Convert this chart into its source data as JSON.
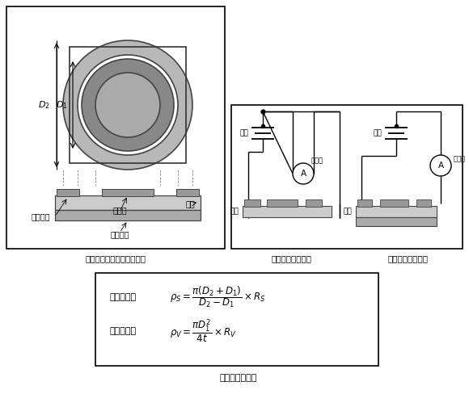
{
  "bg_color": "#ffffff",
  "title_electrode": "抗抗率測定試料の電極形状",
  "title_surface": "表面抗抗測定回路",
  "title_volume": "体積抗抗測定回路",
  "title_formula": "抗抗率の算出式",
  "label_ring": "環状電極",
  "label_main": "主電極",
  "label_sample": "試料",
  "label_counter": "対向電極",
  "label_power": "電源",
  "label_ammeter": "電流計",
  "gray_ring": "#b8b8b8",
  "gray_main": "#888888",
  "gray_sample_plate": "#cccccc",
  "gray_counter": "#aaaaaa",
  "gray_electrode_pad": "#999999"
}
